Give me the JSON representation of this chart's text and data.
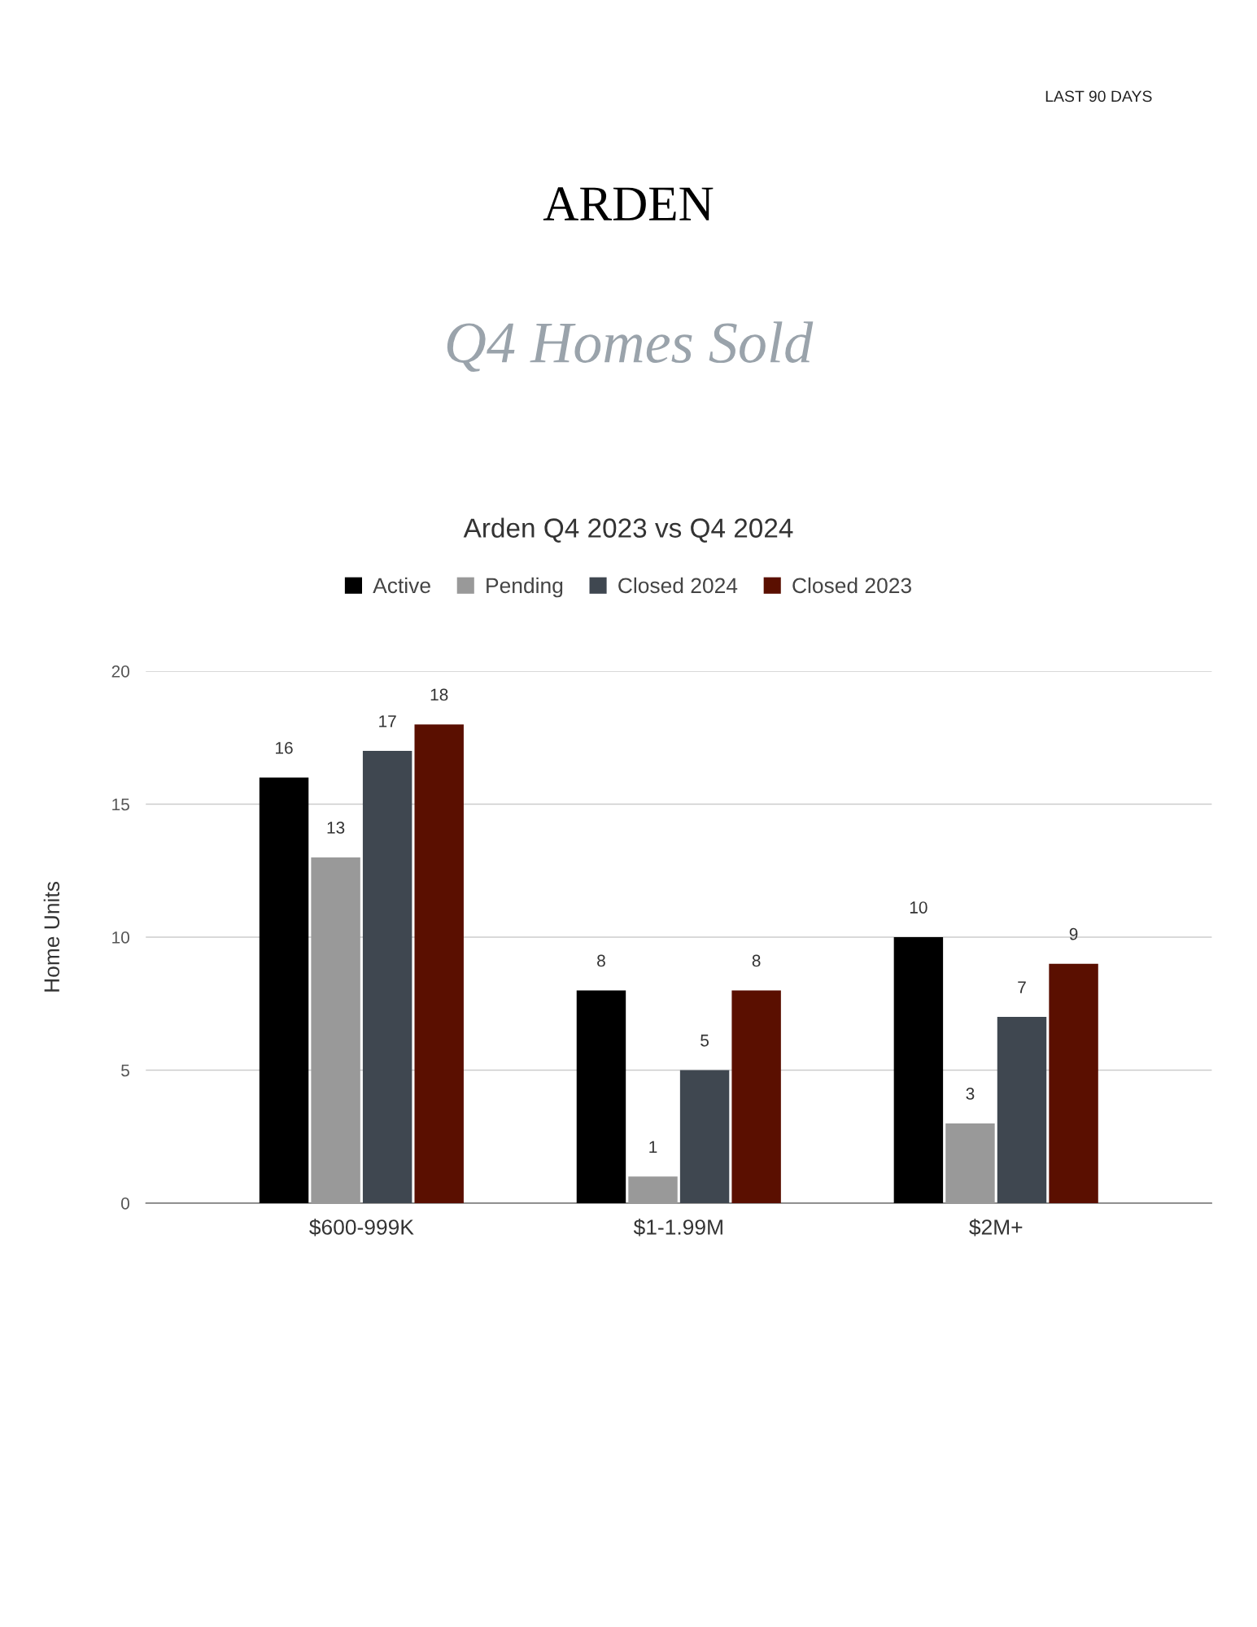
{
  "chart_data": {
    "type": "bar",
    "title": "Arden Q4 2023 vs Q4 2024",
    "ylabel": "Home Units",
    "annotations": [
      "LAST 90 DAYS",
      "ARDEN",
      "Q4 Homes Sold"
    ],
    "categories": [
      "$600-999K",
      "$1-1.99M",
      "$2M+"
    ],
    "series": [
      {
        "name": "Active",
        "color": "#000000",
        "values": [
          16,
          8,
          10
        ]
      },
      {
        "name": "Pending",
        "color": "#999999",
        "values": [
          13,
          1,
          3
        ]
      },
      {
        "name": "Closed 2024",
        "color": "#3f4750",
        "values": [
          17,
          5,
          7
        ]
      },
      {
        "name": "Closed 2023",
        "color": "#5a0f00",
        "values": [
          18,
          8,
          9
        ]
      }
    ],
    "ylim": [
      0,
      20
    ],
    "yticks": [
      0,
      5,
      10,
      15,
      20
    ],
    "grid": "y",
    "legend": "top",
    "data_labels": true
  }
}
